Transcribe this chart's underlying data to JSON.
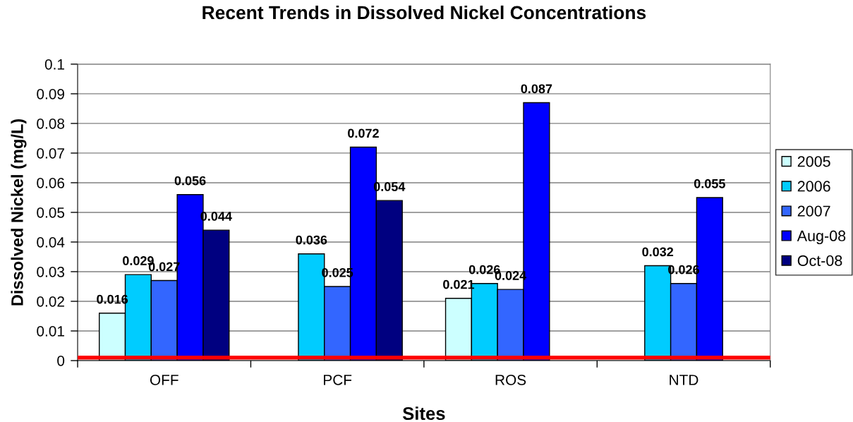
{
  "chart_data": {
    "type": "bar",
    "title": "Recent Trends in Dissolved Nickel Concentrations",
    "xlabel": "Sites",
    "ylabel": "Dissolved Nickel (mg/L)",
    "categories": [
      "OFF",
      "PCF",
      "ROS",
      "NTD"
    ],
    "series": [
      {
        "name": "2005",
        "color": "#ccffff",
        "values": [
          0.016,
          null,
          0.021,
          null
        ]
      },
      {
        "name": "2006",
        "color": "#00ccff",
        "values": [
          0.029,
          0.036,
          0.026,
          0.032
        ]
      },
      {
        "name": "2007",
        "color": "#3366ff",
        "values": [
          0.027,
          0.025,
          0.024,
          0.026
        ]
      },
      {
        "name": "Aug-08",
        "color": "#0000ff",
        "values": [
          0.056,
          0.072,
          0.087,
          0.055
        ]
      },
      {
        "name": "Oct-08",
        "color": "#000080",
        "values": [
          0.044,
          0.054,
          null,
          null
        ]
      }
    ],
    "ylim": [
      0,
      0.1
    ],
    "yticks": [
      0,
      0.01,
      0.02,
      0.03,
      0.04,
      0.05,
      0.06,
      0.07,
      0.08,
      0.09,
      0.1
    ],
    "grid": "y",
    "legend": "right",
    "data_labels": true,
    "ref_lines": [
      {
        "axis": "y",
        "value": 0.001,
        "color": "#ff0000"
      }
    ]
  }
}
